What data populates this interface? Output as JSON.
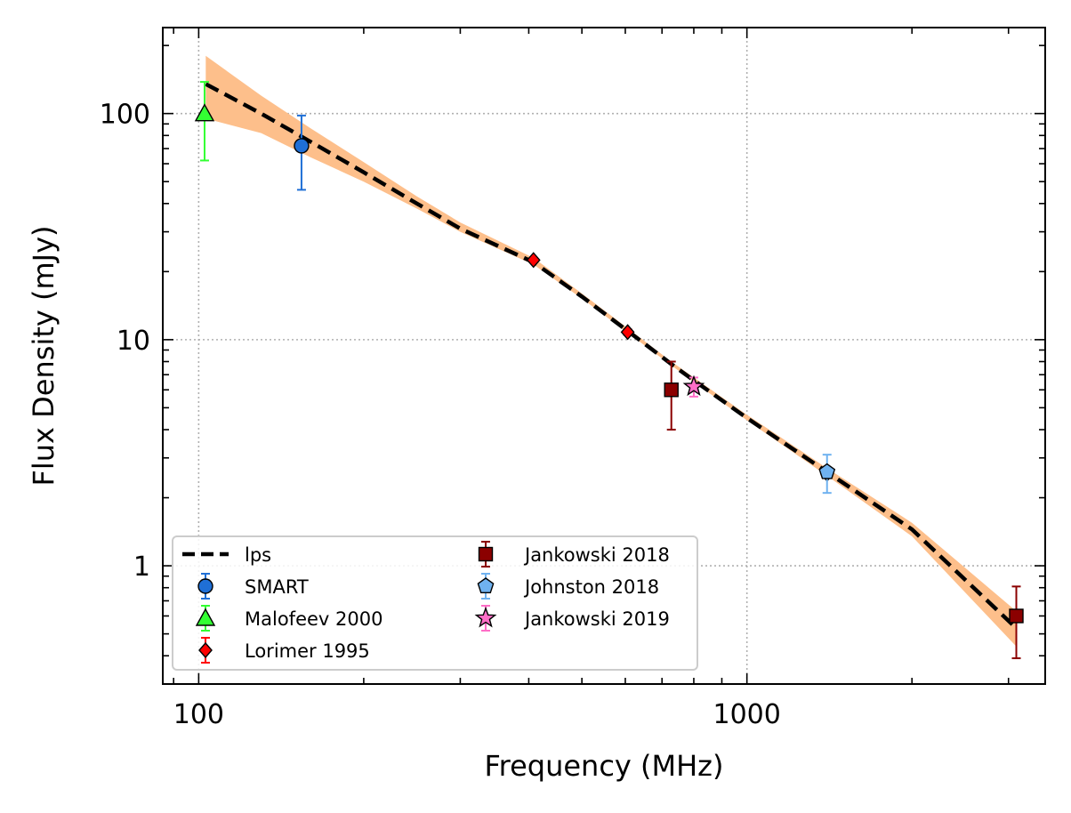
{
  "chart_data": {
    "type": "scatter",
    "title": "",
    "xlabel": "Frequency (MHz)",
    "ylabel": "Flux Density (mJy)",
    "xscale": "log",
    "yscale": "log",
    "xlim": [
      86,
      3500
    ],
    "ylim": [
      0.3,
      240
    ],
    "grid": true,
    "legend_position": "lower-left",
    "x_ticks": [
      {
        "value": 100,
        "label": "100"
      },
      {
        "value": 1000,
        "label": "1000"
      }
    ],
    "y_ticks": [
      {
        "value": 1,
        "label": "1"
      },
      {
        "value": 10,
        "label": "10"
      },
      {
        "value": 100,
        "label": "100"
      }
    ],
    "fit": {
      "name": "lps",
      "color": "#000000",
      "band_color": "#fdbf8b",
      "x": [
        103,
        130,
        160,
        200,
        250,
        300,
        408,
        500,
        610,
        728,
        800,
        1000,
        1400,
        2000,
        3100
      ],
      "y": [
        135,
        100,
        75,
        55,
        40,
        31,
        22,
        15.5,
        10.8,
        7.8,
        6.6,
        4.5,
        2.6,
        1.45,
        0.53
      ],
      "band_low": [
        95,
        82,
        64,
        50,
        38,
        30,
        21.5,
        15.2,
        10.6,
        7.7,
        6.5,
        4.4,
        2.5,
        1.35,
        0.44
      ],
      "band_high": [
        180,
        120,
        86,
        61,
        43,
        33,
        23,
        16,
        11.1,
        8.0,
        6.8,
        4.65,
        2.7,
        1.55,
        0.63
      ]
    },
    "series": [
      {
        "name": "SMART",
        "marker": "circle",
        "color": "#1f6fd6",
        "points": [
          {
            "x": 154,
            "y": 72,
            "ylo": 46,
            "yhi": 98
          }
        ]
      },
      {
        "name": "Malofeev 2000",
        "marker": "triangle",
        "color": "#33ff33",
        "points": [
          {
            "x": 102.5,
            "y": 100,
            "ylo": 62,
            "yhi": 138
          }
        ]
      },
      {
        "name": "Lorimer 1995",
        "marker": "diamond",
        "color": "#ff0000",
        "points": [
          {
            "x": 408,
            "y": 22.5,
            "ylo": 22,
            "yhi": 23
          },
          {
            "x": 606,
            "y": 10.8,
            "ylo": 10.5,
            "yhi": 11.1
          },
          {
            "x": 1400,
            "y": 2.55,
            "ylo": 2.5,
            "yhi": 2.6
          }
        ]
      },
      {
        "name": "Jankowski 2018",
        "marker": "square",
        "color": "#8b0000",
        "points": [
          {
            "x": 728,
            "y": 6.0,
            "ylo": 4.0,
            "yhi": 8.0
          },
          {
            "x": 3100,
            "y": 0.6,
            "ylo": 0.39,
            "yhi": 0.81
          }
        ]
      },
      {
        "name": "Johnston 2018",
        "marker": "pentagon",
        "color": "#6fb2f0",
        "points": [
          {
            "x": 1400,
            "y": 2.6,
            "ylo": 2.1,
            "yhi": 3.1
          }
        ]
      },
      {
        "name": "Jankowski 2019",
        "marker": "star",
        "color": "#ff6ec7",
        "points": [
          {
            "x": 800,
            "y": 6.2,
            "ylo": 5.6,
            "yhi": 6.8
          }
        ]
      }
    ],
    "legend_items": [
      "lps",
      "SMART",
      "Malofeev 2000",
      "Lorimer 1995",
      "Jankowski 2018",
      "Johnston 2018",
      "Jankowski 2019"
    ]
  }
}
